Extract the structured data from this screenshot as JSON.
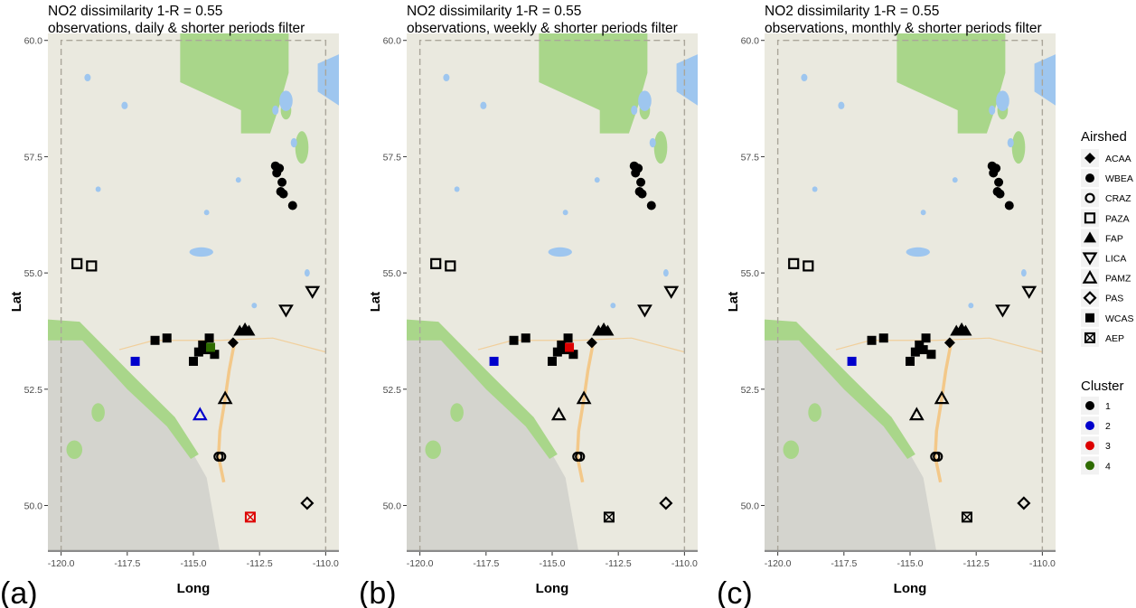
{
  "panels": [
    {
      "label": "(a)",
      "title_line1": "NO2 dissimilarity 1-R = 0.55",
      "title_line2": " observations, daily & shorter periods filter"
    },
    {
      "label": "(b)",
      "title_line1": "NO2 dissimilarity 1-R = 0.55",
      "title_line2": " observations, weekly & shorter periods filter"
    },
    {
      "label": "(c)",
      "title_line1": "NO2 dissimilarity 1-R = 0.55",
      "title_line2": " observations, monthly & shorter periods filter"
    }
  ],
  "axes": {
    "xlabel": "Long",
    "ylabel": "Lat",
    "xticks": [
      -120,
      -117.5,
      -115,
      -112.5,
      -110
    ],
    "xtick_labels": [
      "-120.0",
      "-117.5",
      "-115.0",
      "-112.5",
      "-110.0"
    ],
    "yticks": [
      50,
      52.5,
      55,
      57.5,
      60
    ],
    "ytick_labels": [
      "50.0",
      "52.5",
      "55.0",
      "57.5",
      "60.0"
    ],
    "xlim": [
      -120.5,
      -109.5
    ],
    "ylim": [
      49.0,
      60.15
    ]
  },
  "legend_airshed": {
    "title": "Airshed",
    "items": [
      {
        "label": "ACAA",
        "shape": "diamond-filled"
      },
      {
        "label": "WBEA",
        "shape": "circle-filled"
      },
      {
        "label": "CRAZ",
        "shape": "circle-open"
      },
      {
        "label": "PAZA",
        "shape": "square-open"
      },
      {
        "label": "FAP",
        "shape": "triangle-filled"
      },
      {
        "label": "LICA",
        "shape": "triangle-down-open"
      },
      {
        "label": "PAMZ",
        "shape": "triangle-open"
      },
      {
        "label": "PAS",
        "shape": "diamond-open"
      },
      {
        "label": "WCAS",
        "shape": "square-filled"
      },
      {
        "label": "AEP",
        "shape": "square-x"
      }
    ]
  },
  "legend_cluster": {
    "title": "Cluster",
    "items": [
      {
        "label": "1",
        "color": "#000000"
      },
      {
        "label": "2",
        "color": "#0000cc"
      },
      {
        "label": "3",
        "color": "#dd0000"
      },
      {
        "label": "4",
        "color": "#2e6b00"
      }
    ]
  },
  "map_colors": {
    "land": "#eae9df",
    "forest": "#a9d68a",
    "water": "#9ec6ef",
    "mountain": "#d4d4ce",
    "road": "#f3c889",
    "frame": "#8a8a8a"
  },
  "chart_data": [
    {
      "type": "scatter",
      "panel": "(a)",
      "xlabel": "Long",
      "ylabel": "Lat",
      "xlim": [
        -120.5,
        -109.5
      ],
      "ylim": [
        49.0,
        60.15
      ],
      "points": [
        {
          "airshed": "WBEA",
          "cluster": "1",
          "lon": -111.9,
          "lat": 57.3
        },
        {
          "airshed": "WBEA",
          "cluster": "1",
          "lon": -111.75,
          "lat": 57.25
        },
        {
          "airshed": "WBEA",
          "cluster": "1",
          "lon": -111.85,
          "lat": 57.15
        },
        {
          "airshed": "WBEA",
          "cluster": "1",
          "lon": -111.65,
          "lat": 56.95
        },
        {
          "airshed": "WBEA",
          "cluster": "1",
          "lon": -111.7,
          "lat": 56.75
        },
        {
          "airshed": "WBEA",
          "cluster": "1",
          "lon": -111.6,
          "lat": 56.7
        },
        {
          "airshed": "WBEA",
          "cluster": "1",
          "lon": -111.25,
          "lat": 56.45
        },
        {
          "airshed": "PAZA",
          "cluster": "1",
          "lon": -119.4,
          "lat": 55.2
        },
        {
          "airshed": "PAZA",
          "cluster": "1",
          "lon": -118.85,
          "lat": 55.15
        },
        {
          "airshed": "LICA",
          "cluster": "1",
          "lon": -111.5,
          "lat": 54.2
        },
        {
          "airshed": "LICA",
          "cluster": "1",
          "lon": -110.5,
          "lat": 54.6
        },
        {
          "airshed": "WCAS",
          "cluster": "2",
          "lon": -117.2,
          "lat": 53.1
        },
        {
          "airshed": "WCAS",
          "cluster": "1",
          "lon": -116.45,
          "lat": 53.55
        },
        {
          "airshed": "WCAS",
          "cluster": "1",
          "lon": -116.0,
          "lat": 53.6
        },
        {
          "airshed": "WCAS",
          "cluster": "1",
          "lon": -115.0,
          "lat": 53.1
        },
        {
          "airshed": "WCAS",
          "cluster": "1",
          "lon": -114.8,
          "lat": 53.3
        },
        {
          "airshed": "WCAS",
          "cluster": "1",
          "lon": -114.65,
          "lat": 53.45
        },
        {
          "airshed": "WCAS",
          "cluster": "1",
          "lon": -114.5,
          "lat": 53.35
        },
        {
          "airshed": "WCAS",
          "cluster": "1",
          "lon": -114.4,
          "lat": 53.6
        },
        {
          "airshed": "WCAS",
          "cluster": "1",
          "lon": -114.2,
          "lat": 53.25
        },
        {
          "airshed": "WCAS",
          "cluster": "4",
          "lon": -114.35,
          "lat": 53.4
        },
        {
          "airshed": "ACAA",
          "cluster": "1",
          "lon": -113.5,
          "lat": 53.5
        },
        {
          "airshed": "FAP",
          "cluster": "1",
          "lon": -113.25,
          "lat": 53.75
        },
        {
          "airshed": "FAP",
          "cluster": "1",
          "lon": -113.05,
          "lat": 53.8
        },
        {
          "airshed": "FAP",
          "cluster": "1",
          "lon": -112.9,
          "lat": 53.75
        },
        {
          "airshed": "PAMZ",
          "cluster": "1",
          "lon": -113.8,
          "lat": 52.3
        },
        {
          "airshed": "PAMZ",
          "cluster": "2",
          "lon": -114.75,
          "lat": 51.95
        },
        {
          "airshed": "CRAZ",
          "cluster": "1",
          "lon": -114.05,
          "lat": 51.05
        },
        {
          "airshed": "CRAZ",
          "cluster": "1",
          "lon": -113.95,
          "lat": 51.05
        },
        {
          "airshed": "PAS",
          "cluster": "1",
          "lon": -110.7,
          "lat": 50.05
        },
        {
          "airshed": "AEP",
          "cluster": "3",
          "lon": -112.85,
          "lat": 49.75
        }
      ]
    },
    {
      "type": "scatter",
      "panel": "(b)",
      "xlabel": "Long",
      "ylabel": "Lat",
      "xlim": [
        -120.5,
        -109.5
      ],
      "ylim": [
        49.0,
        60.15
      ],
      "points": [
        {
          "airshed": "WBEA",
          "cluster": "1",
          "lon": -111.9,
          "lat": 57.3
        },
        {
          "airshed": "WBEA",
          "cluster": "1",
          "lon": -111.75,
          "lat": 57.25
        },
        {
          "airshed": "WBEA",
          "cluster": "1",
          "lon": -111.85,
          "lat": 57.15
        },
        {
          "airshed": "WBEA",
          "cluster": "1",
          "lon": -111.65,
          "lat": 56.95
        },
        {
          "airshed": "WBEA",
          "cluster": "1",
          "lon": -111.7,
          "lat": 56.75
        },
        {
          "airshed": "WBEA",
          "cluster": "1",
          "lon": -111.6,
          "lat": 56.7
        },
        {
          "airshed": "WBEA",
          "cluster": "1",
          "lon": -111.25,
          "lat": 56.45
        },
        {
          "airshed": "PAZA",
          "cluster": "1",
          "lon": -119.4,
          "lat": 55.2
        },
        {
          "airshed": "PAZA",
          "cluster": "1",
          "lon": -118.85,
          "lat": 55.15
        },
        {
          "airshed": "LICA",
          "cluster": "1",
          "lon": -111.5,
          "lat": 54.2
        },
        {
          "airshed": "LICA",
          "cluster": "1",
          "lon": -110.5,
          "lat": 54.6
        },
        {
          "airshed": "WCAS",
          "cluster": "2",
          "lon": -117.2,
          "lat": 53.1
        },
        {
          "airshed": "WCAS",
          "cluster": "1",
          "lon": -116.45,
          "lat": 53.55
        },
        {
          "airshed": "WCAS",
          "cluster": "1",
          "lon": -116.0,
          "lat": 53.6
        },
        {
          "airshed": "WCAS",
          "cluster": "1",
          "lon": -115.0,
          "lat": 53.1
        },
        {
          "airshed": "WCAS",
          "cluster": "1",
          "lon": -114.8,
          "lat": 53.3
        },
        {
          "airshed": "WCAS",
          "cluster": "1",
          "lon": -114.65,
          "lat": 53.45
        },
        {
          "airshed": "WCAS",
          "cluster": "1",
          "lon": -114.5,
          "lat": 53.35
        },
        {
          "airshed": "WCAS",
          "cluster": "1",
          "lon": -114.4,
          "lat": 53.6
        },
        {
          "airshed": "WCAS",
          "cluster": "1",
          "lon": -114.2,
          "lat": 53.25
        },
        {
          "airshed": "WCAS",
          "cluster": "3",
          "lon": -114.35,
          "lat": 53.4
        },
        {
          "airshed": "ACAA",
          "cluster": "1",
          "lon": -113.5,
          "lat": 53.5
        },
        {
          "airshed": "FAP",
          "cluster": "1",
          "lon": -113.25,
          "lat": 53.75
        },
        {
          "airshed": "FAP",
          "cluster": "1",
          "lon": -113.05,
          "lat": 53.8
        },
        {
          "airshed": "FAP",
          "cluster": "1",
          "lon": -112.9,
          "lat": 53.75
        },
        {
          "airshed": "PAMZ",
          "cluster": "1",
          "lon": -113.8,
          "lat": 52.3
        },
        {
          "airshed": "PAMZ",
          "cluster": "1",
          "lon": -114.75,
          "lat": 51.95
        },
        {
          "airshed": "CRAZ",
          "cluster": "1",
          "lon": -114.05,
          "lat": 51.05
        },
        {
          "airshed": "CRAZ",
          "cluster": "1",
          "lon": -113.95,
          "lat": 51.05
        },
        {
          "airshed": "PAS",
          "cluster": "1",
          "lon": -110.7,
          "lat": 50.05
        },
        {
          "airshed": "AEP",
          "cluster": "1",
          "lon": -112.85,
          "lat": 49.75
        }
      ]
    },
    {
      "type": "scatter",
      "panel": "(c)",
      "xlabel": "Long",
      "ylabel": "Lat",
      "xlim": [
        -120.5,
        -109.5
      ],
      "ylim": [
        49.0,
        60.15
      ],
      "points": [
        {
          "airshed": "WBEA",
          "cluster": "1",
          "lon": -111.9,
          "lat": 57.3
        },
        {
          "airshed": "WBEA",
          "cluster": "1",
          "lon": -111.75,
          "lat": 57.25
        },
        {
          "airshed": "WBEA",
          "cluster": "1",
          "lon": -111.85,
          "lat": 57.15
        },
        {
          "airshed": "WBEA",
          "cluster": "1",
          "lon": -111.65,
          "lat": 56.95
        },
        {
          "airshed": "WBEA",
          "cluster": "1",
          "lon": -111.7,
          "lat": 56.75
        },
        {
          "airshed": "WBEA",
          "cluster": "1",
          "lon": -111.6,
          "lat": 56.7
        },
        {
          "airshed": "WBEA",
          "cluster": "1",
          "lon": -111.25,
          "lat": 56.45
        },
        {
          "airshed": "PAZA",
          "cluster": "1",
          "lon": -119.4,
          "lat": 55.2
        },
        {
          "airshed": "PAZA",
          "cluster": "1",
          "lon": -118.85,
          "lat": 55.15
        },
        {
          "airshed": "LICA",
          "cluster": "1",
          "lon": -111.5,
          "lat": 54.2
        },
        {
          "airshed": "LICA",
          "cluster": "1",
          "lon": -110.5,
          "lat": 54.6
        },
        {
          "airshed": "WCAS",
          "cluster": "2",
          "lon": -117.2,
          "lat": 53.1
        },
        {
          "airshed": "WCAS",
          "cluster": "1",
          "lon": -116.45,
          "lat": 53.55
        },
        {
          "airshed": "WCAS",
          "cluster": "1",
          "lon": -116.0,
          "lat": 53.6
        },
        {
          "airshed": "WCAS",
          "cluster": "1",
          "lon": -115.0,
          "lat": 53.1
        },
        {
          "airshed": "WCAS",
          "cluster": "1",
          "lon": -114.8,
          "lat": 53.3
        },
        {
          "airshed": "WCAS",
          "cluster": "1",
          "lon": -114.65,
          "lat": 53.45
        },
        {
          "airshed": "WCAS",
          "cluster": "1",
          "lon": -114.5,
          "lat": 53.35
        },
        {
          "airshed": "WCAS",
          "cluster": "1",
          "lon": -114.4,
          "lat": 53.6
        },
        {
          "airshed": "WCAS",
          "cluster": "1",
          "lon": -114.2,
          "lat": 53.25
        },
        {
          "airshed": "ACAA",
          "cluster": "1",
          "lon": -113.5,
          "lat": 53.5
        },
        {
          "airshed": "FAP",
          "cluster": "1",
          "lon": -113.25,
          "lat": 53.75
        },
        {
          "airshed": "FAP",
          "cluster": "1",
          "lon": -113.05,
          "lat": 53.8
        },
        {
          "airshed": "FAP",
          "cluster": "1",
          "lon": -112.9,
          "lat": 53.75
        },
        {
          "airshed": "PAMZ",
          "cluster": "1",
          "lon": -113.8,
          "lat": 52.3
        },
        {
          "airshed": "PAMZ",
          "cluster": "1",
          "lon": -114.75,
          "lat": 51.95
        },
        {
          "airshed": "CRAZ",
          "cluster": "1",
          "lon": -114.05,
          "lat": 51.05
        },
        {
          "airshed": "CRAZ",
          "cluster": "1",
          "lon": -113.95,
          "lat": 51.05
        },
        {
          "airshed": "PAS",
          "cluster": "1",
          "lon": -110.7,
          "lat": 50.05
        },
        {
          "airshed": "AEP",
          "cluster": "1",
          "lon": -112.85,
          "lat": 49.75
        }
      ]
    }
  ]
}
